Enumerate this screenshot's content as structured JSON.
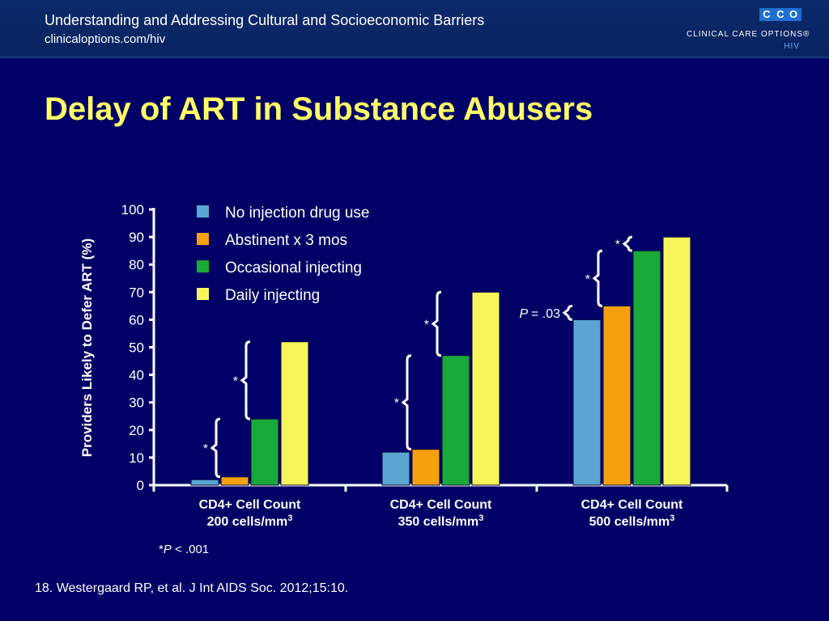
{
  "header": {
    "title": "Understanding and Addressing Cultural and Socioeconomic Barriers",
    "subtitle": "clinicaloptions.com/hiv"
  },
  "logo": {
    "mark": [
      "C",
      "C",
      "O"
    ],
    "name": "CLINICAL CARE OPTIONS®",
    "section": "HIV"
  },
  "slide_title": "Delay of ART in Substance Abusers",
  "footnote": {
    "star": "*",
    "p": "P",
    "rest": " < .001"
  },
  "reference": "18. Westergaard RP, et al. J Int AIDS Soc. 2012;15:10.",
  "chart_data": {
    "type": "bar",
    "title": "",
    "xlabel": "",
    "ylabel": "Providers Likely to Defer ART (%)",
    "ylim": [
      0,
      100
    ],
    "yticks": [
      0,
      10,
      20,
      30,
      40,
      50,
      60,
      70,
      80,
      90,
      100
    ],
    "categories": [
      {
        "line1": "CD4+ Cell Count",
        "line2": "200 cells/mm",
        "sup": "3"
      },
      {
        "line1": "CD4+ Cell Count",
        "line2": "350 cells/mm",
        "sup": "3"
      },
      {
        "line1": "CD4+ Cell Count",
        "line2": "500 cells/mm",
        "sup": "3"
      }
    ],
    "legend_position": "top-left",
    "series": [
      {
        "name": "No injection drug use",
        "color": "#5aa6d0",
        "values": [
          2,
          12,
          60
        ]
      },
      {
        "name": "Abstinent x 3 mos",
        "color": "#f5a00f",
        "values": [
          3,
          13,
          65
        ]
      },
      {
        "name": "Occasional injecting",
        "color": "#1aaa3a",
        "values": [
          24,
          47,
          85
        ]
      },
      {
        "name": "Daily injecting",
        "color": "#f6f55a",
        "values": [
          52,
          70,
          90
        ]
      }
    ],
    "annotations": [
      {
        "group": 0,
        "from": 1,
        "to": 2,
        "label": "*"
      },
      {
        "group": 0,
        "from": 2,
        "to": 3,
        "label": "*"
      },
      {
        "group": 1,
        "from": 1,
        "to": 2,
        "label": "*"
      },
      {
        "group": 1,
        "from": 2,
        "to": 3,
        "label": "*"
      },
      {
        "group": 2,
        "from": 0,
        "to": 1,
        "label": "= .03",
        "italic_prefix": "P"
      },
      {
        "group": 2,
        "from": 1,
        "to": 2,
        "label": "*"
      },
      {
        "group": 2,
        "from": 2,
        "to": 3,
        "label": "*"
      }
    ]
  }
}
